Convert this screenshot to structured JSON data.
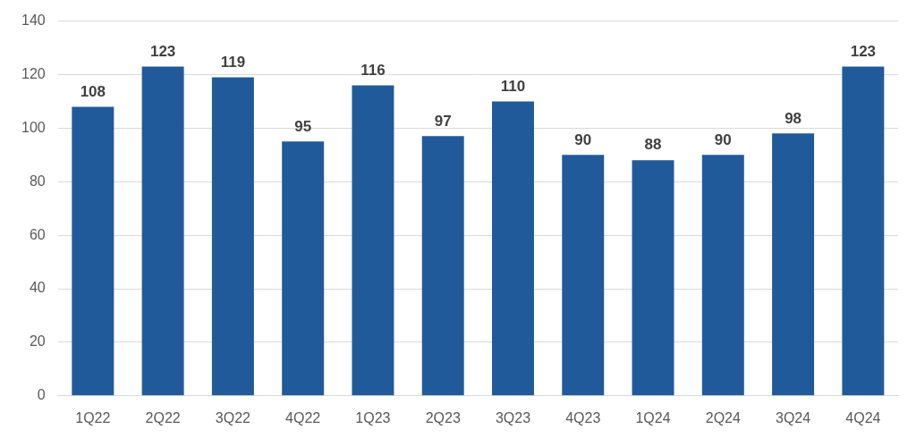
{
  "chart_data": {
    "type": "bar",
    "categories": [
      "1Q22",
      "2Q22",
      "3Q22",
      "4Q22",
      "1Q23",
      "2Q23",
      "3Q23",
      "4Q23",
      "1Q24",
      "2Q24",
      "3Q24",
      "4Q24"
    ],
    "values": [
      108,
      123,
      119,
      95,
      116,
      97,
      110,
      90,
      88,
      90,
      98,
      123
    ],
    "color": "#215a9a",
    "ylim": [
      0,
      140
    ],
    "yticks": [
      0,
      20,
      40,
      60,
      80,
      100,
      120,
      140
    ],
    "grid": true,
    "data_labels": true
  }
}
